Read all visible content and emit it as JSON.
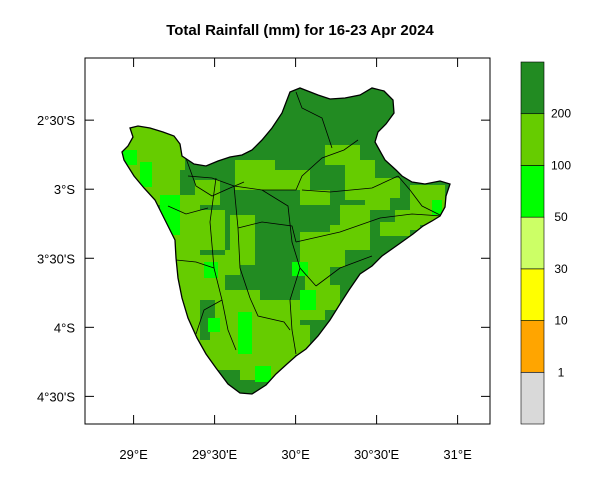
{
  "title": "Total Rainfall (mm) for 16-23 Apr 2024",
  "map": {
    "lon_range": [
      28.7,
      31.2
    ],
    "lat_range": [
      -4.7,
      -2.05
    ],
    "lat_ticks": [
      {
        "value": -2.5,
        "label": "2°30'S"
      },
      {
        "value": -3.0,
        "label": "3°S"
      },
      {
        "value": -3.5,
        "label": "3°30'S"
      },
      {
        "value": -4.0,
        "label": "4°S"
      },
      {
        "value": -4.5,
        "label": "4°30'S"
      }
    ],
    "lon_ticks": [
      {
        "value": 29.0,
        "label": "29°E"
      },
      {
        "value": 29.5,
        "label": "29°30'E"
      },
      {
        "value": 30.0,
        "label": "30°E"
      },
      {
        "value": 30.5,
        "label": "30°30'E"
      },
      {
        "value": 31.0,
        "label": "31°E"
      }
    ]
  },
  "legend": {
    "bins": [
      {
        "color": "#d9d9d9",
        "label": "1"
      },
      {
        "color": "#ffa500",
        "label": "10"
      },
      {
        "color": "#ffff00",
        "label": "30"
      },
      {
        "color": "#ccff66",
        "label": "50"
      },
      {
        "color": "#00ff00",
        "label": "100"
      },
      {
        "color": "#66cc00",
        "label": "200"
      },
      {
        "color": "#228b22",
        "label": ""
      }
    ]
  },
  "colors": {
    "dark_green": "#228b22",
    "mid_green": "#66cc00",
    "bright_green": "#00ff00",
    "border": "#000000"
  }
}
